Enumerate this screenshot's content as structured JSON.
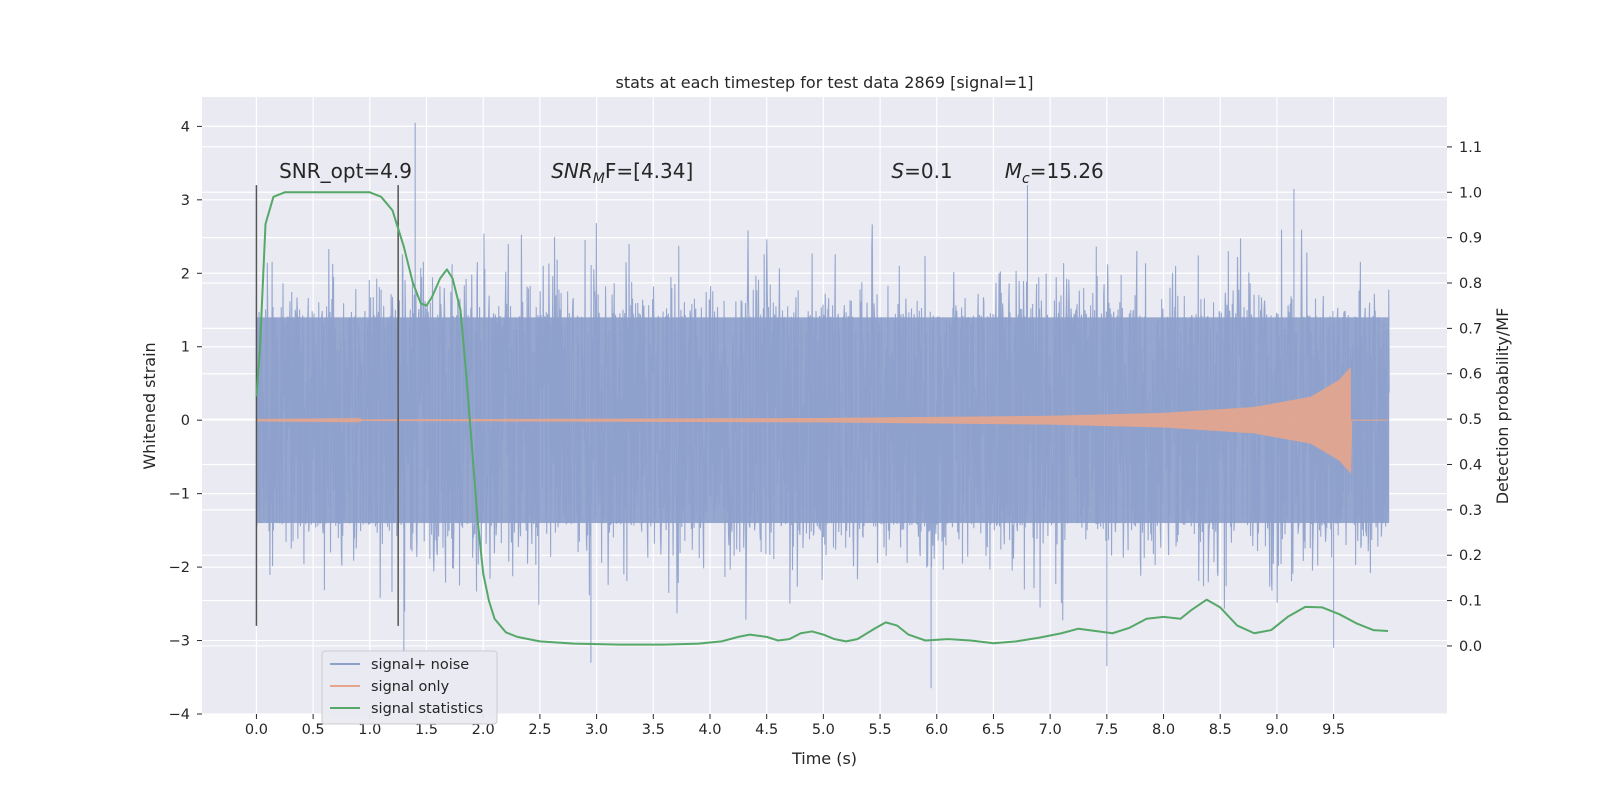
{
  "chart_data": {
    "type": "line",
    "title": "stats at each timestep for test data 2869 [signal=1]",
    "xlabel": "Time (s)",
    "ylabel_left": "Whitened strain",
    "ylabel_right": "Detection probability/MF",
    "xlim": [
      -0.48,
      10.5
    ],
    "ylim_left": [
      -4.0,
      4.4
    ],
    "ylim_right": [
      -0.15,
      1.21
    ],
    "x_ticks": [
      "0.0",
      "0.5",
      "1.0",
      "1.5",
      "2.0",
      "2.5",
      "3.0",
      "3.5",
      "4.0",
      "4.5",
      "5.0",
      "5.5",
      "6.0",
      "6.5",
      "7.0",
      "7.5",
      "8.0",
      "8.5",
      "9.0",
      "9.5"
    ],
    "y_left_ticks": [
      "4",
      "3",
      "2",
      "1",
      "0",
      "−1",
      "−2",
      "−3",
      "−4"
    ],
    "y_right_ticks": [
      "1.1",
      "1.0",
      "0.9",
      "0.8",
      "0.7",
      "0.6",
      "0.5",
      "0.4",
      "0.3",
      "0.2",
      "0.1",
      "0.0"
    ],
    "grid": true,
    "legend_position": "lower-left",
    "annotations": [
      {
        "id": "snr_opt",
        "text": "SNR_opt=4.9",
        "x": 0.2,
        "y": 3.3
      },
      {
        "id": "snr_mf",
        "base": "SNR",
        "sub": "M",
        "suffix": "F=[4.34]",
        "x": 2.6,
        "y": 3.3
      },
      {
        "id": "s",
        "base": "S",
        "suffix": "=0.1",
        "x": 5.6,
        "y": 3.3
      },
      {
        "id": "mc",
        "base": "M",
        "sub": "c",
        "suffix": "=15.26",
        "x": 6.6,
        "y": 3.3
      }
    ],
    "vertical_markers": [
      {
        "x": 0.0,
        "y_top": 3.2,
        "y_bottom": -2.8
      },
      {
        "x": 1.25,
        "y_top": 3.2,
        "y_bottom": -2.8
      }
    ],
    "series": [
      {
        "name": "signal+ noise",
        "axis": "left",
        "color": "#8da0cb",
        "x_range": [
          0.0,
          9.99
        ],
        "typical_band": [
          -1.4,
          1.4
        ],
        "peak_extremes": [
          {
            "x": 1.4,
            "y": 4.05
          },
          {
            "x": 6.8,
            "y": 3.2
          },
          {
            "x": 9.15,
            "y": 3.15
          },
          {
            "x": 5.95,
            "y": -3.65
          },
          {
            "x": 7.5,
            "y": -3.35
          },
          {
            "x": 1.3,
            "y": -3.2
          },
          {
            "x": 2.95,
            "y": -3.3
          },
          {
            "x": 9.5,
            "y": -3.1
          }
        ]
      },
      {
        "name": "signal only",
        "axis": "left",
        "color": "#e5a58c",
        "x_range": [
          0.0,
          9.65
        ],
        "envelope": [
          [
            0.0,
            0.005
          ],
          [
            5.0,
            0.03
          ],
          [
            7.0,
            0.06
          ],
          [
            8.0,
            0.1
          ],
          [
            8.8,
            0.18
          ],
          [
            9.3,
            0.32
          ],
          [
            9.55,
            0.55
          ],
          [
            9.65,
            0.72
          ]
        ],
        "tail_end_x": 9.66
      },
      {
        "name": "signal statistics",
        "axis": "right",
        "color": "#55a868",
        "points": [
          [
            0.0,
            0.55
          ],
          [
            0.03,
            0.65
          ],
          [
            0.08,
            0.93
          ],
          [
            0.15,
            0.99
          ],
          [
            0.25,
            1.0
          ],
          [
            0.5,
            1.0
          ],
          [
            0.8,
            1.0
          ],
          [
            1.0,
            1.0
          ],
          [
            1.1,
            0.99
          ],
          [
            1.2,
            0.96
          ],
          [
            1.3,
            0.88
          ],
          [
            1.38,
            0.8
          ],
          [
            1.45,
            0.755
          ],
          [
            1.5,
            0.75
          ],
          [
            1.55,
            0.77
          ],
          [
            1.62,
            0.81
          ],
          [
            1.68,
            0.83
          ],
          [
            1.73,
            0.81
          ],
          [
            1.8,
            0.74
          ],
          [
            1.85,
            0.6
          ],
          [
            1.9,
            0.44
          ],
          [
            1.95,
            0.28
          ],
          [
            2.0,
            0.16
          ],
          [
            2.05,
            0.1
          ],
          [
            2.1,
            0.06
          ],
          [
            2.2,
            0.03
          ],
          [
            2.3,
            0.02
          ],
          [
            2.5,
            0.01
          ],
          [
            2.8,
            0.005
          ],
          [
            3.2,
            0.003
          ],
          [
            3.6,
            0.003
          ],
          [
            3.9,
            0.005
          ],
          [
            4.1,
            0.01
          ],
          [
            4.25,
            0.02
          ],
          [
            4.35,
            0.025
          ],
          [
            4.5,
            0.02
          ],
          [
            4.6,
            0.012
          ],
          [
            4.7,
            0.015
          ],
          [
            4.8,
            0.028
          ],
          [
            4.9,
            0.032
          ],
          [
            5.0,
            0.025
          ],
          [
            5.1,
            0.015
          ],
          [
            5.2,
            0.01
          ],
          [
            5.3,
            0.015
          ],
          [
            5.45,
            0.038
          ],
          [
            5.55,
            0.052
          ],
          [
            5.65,
            0.045
          ],
          [
            5.75,
            0.025
          ],
          [
            5.9,
            0.012
          ],
          [
            6.1,
            0.015
          ],
          [
            6.3,
            0.012
          ],
          [
            6.5,
            0.006
          ],
          [
            6.7,
            0.01
          ],
          [
            6.9,
            0.018
          ],
          [
            7.1,
            0.028
          ],
          [
            7.25,
            0.038
          ],
          [
            7.4,
            0.033
          ],
          [
            7.55,
            0.028
          ],
          [
            7.7,
            0.04
          ],
          [
            7.85,
            0.06
          ],
          [
            8.0,
            0.064
          ],
          [
            8.15,
            0.06
          ],
          [
            8.25,
            0.08
          ],
          [
            8.38,
            0.102
          ],
          [
            8.5,
            0.085
          ],
          [
            8.65,
            0.045
          ],
          [
            8.8,
            0.028
          ],
          [
            8.95,
            0.035
          ],
          [
            9.1,
            0.065
          ],
          [
            9.25,
            0.086
          ],
          [
            9.4,
            0.085
          ],
          [
            9.55,
            0.07
          ],
          [
            9.7,
            0.05
          ],
          [
            9.85,
            0.035
          ],
          [
            9.98,
            0.033
          ]
        ]
      }
    ]
  },
  "legend": {
    "items": [
      {
        "label": "signal+ noise",
        "color": "#8da0cb"
      },
      {
        "label": "signal only",
        "color": "#e5a58c"
      },
      {
        "label": "signal statistics",
        "color": "#55a868"
      }
    ]
  }
}
